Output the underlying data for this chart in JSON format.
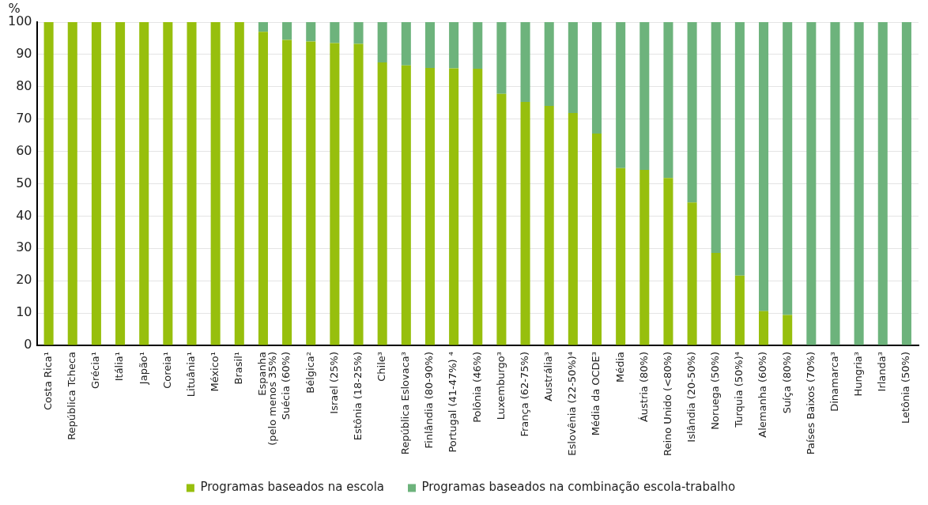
{
  "chart_data": {
    "type": "bar",
    "stacked": true,
    "ylabel": "%",
    "categories": [
      "Costa Rica¹",
      "República Tcheca",
      "Grécia¹",
      "Itália¹",
      "Japão¹",
      "Coreia¹",
      "Lituânia¹",
      "México¹",
      "Brasil¹",
      "Espanha\n(pelo menos 35%)",
      "Suécia (60%)",
      "Bélgica²",
      "Israel (25%)",
      "Estônia (18-25%)",
      "Chile³",
      "República Eslovaca³",
      "Finlândia (80-90%)",
      "Portugal (41-47%) ⁴",
      "Polônia (46%)",
      "Luxemburgo³",
      "França (62-75%)",
      "Austrália³",
      "Eslovênia (22-50%)⁴",
      "Média da OCDE³",
      "Média",
      "Áustria (80%)",
      "Reino Unido (<80%)",
      "Islândia (20-50%)",
      "Noruega (50%)",
      "Turquia (50%)⁴",
      "Alemanha (60%)",
      "Suíça (80%)",
      "Países Baixos (70%)",
      "Dinamarca³",
      "Hungria³",
      "Irlanda³",
      "Letônia (50%)"
    ],
    "series": [
      {
        "name": "Programas baseados na escola",
        "color": "#97bf0d",
        "values": [
          100,
          100,
          100,
          100,
          100,
          100,
          100,
          100,
          100,
          97,
          94.5,
          94,
          93.5,
          93.3,
          87.5,
          86.6,
          85.8,
          85.7,
          85.6,
          77.8,
          75.3,
          74.1,
          71.9,
          65.5,
          54.8,
          54.3,
          51.8,
          44.2,
          28.6,
          21.6,
          10.6,
          9.4,
          0,
          0,
          0,
          0,
          0
        ]
      },
      {
        "name": "Programas baseados na combinação escola-trabalho",
        "color": "#6db37c",
        "values": [
          0,
          0,
          0,
          0,
          0,
          0,
          0,
          0,
          0,
          3,
          5.5,
          6,
          6.5,
          6.7,
          12.5,
          13.4,
          14.2,
          14.3,
          14.4,
          22.2,
          24.7,
          25.9,
          28.1,
          34.5,
          45.2,
          45.7,
          48.2,
          55.8,
          71.4,
          78.4,
          89.4,
          90.6,
          100,
          100,
          100,
          100,
          100
        ]
      }
    ],
    "ylim": [
      0,
      100
    ],
    "yticks": [
      0,
      10,
      20,
      30,
      40,
      50,
      60,
      70,
      80,
      90,
      100
    ],
    "grid": "y",
    "legend": "bottom"
  }
}
